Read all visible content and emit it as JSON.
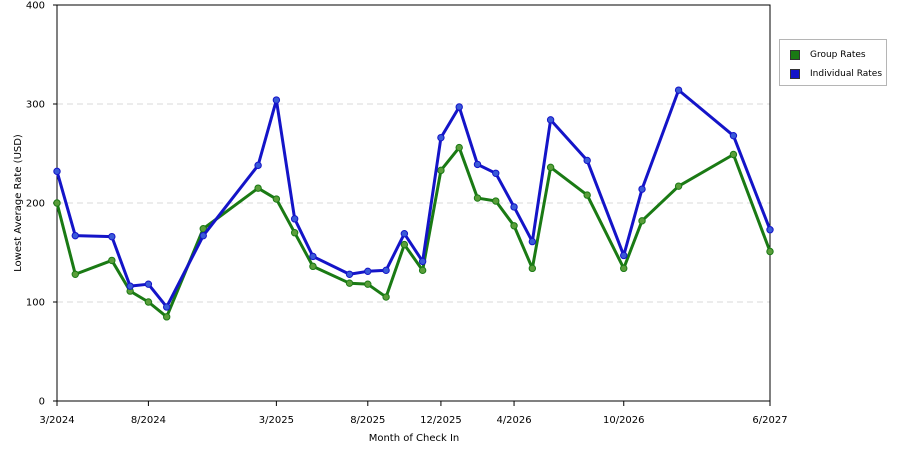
{
  "chart_data": {
    "type": "line",
    "xlabel": "Month of Check In",
    "ylabel": "Lowest Average Rate (USD)",
    "ylim": [
      0,
      400
    ],
    "yticks": [
      0,
      100,
      200,
      300,
      400
    ],
    "grid": "horizontal dashed",
    "legend_position": "right",
    "x": [
      "3/2024",
      "4/2024",
      "5/2024",
      "6/2024",
      "7/2024",
      "8/2024",
      "9/2024",
      "10/2024",
      "11/2024",
      "12/2024",
      "1/2025",
      "2/2025",
      "3/2025",
      "4/2025",
      "5/2025",
      "6/2025",
      "7/2025",
      "8/2025",
      "9/2025",
      "10/2025",
      "11/2025",
      "12/2025",
      "1/2026",
      "2/2026",
      "3/2026",
      "4/2026",
      "5/2026",
      "6/2026",
      "7/2026",
      "8/2026",
      "9/2026",
      "10/2026",
      "11/2026",
      "12/2026",
      "1/2027",
      "2/2027",
      "3/2027",
      "4/2027",
      "5/2027",
      "6/2027"
    ],
    "x_tick_labels": [
      "3/2024",
      "8/2024",
      "3/2025",
      "8/2025",
      "12/2025",
      "4/2026",
      "10/2026",
      "6/2027"
    ],
    "points": [
      {
        "x": "3/2024",
        "group": 200,
        "individual": 232
      },
      {
        "x": "4/2024",
        "group": 128,
        "individual": 167
      },
      {
        "x": "6/2024",
        "group": 142,
        "individual": 166
      },
      {
        "x": "7/2024",
        "group": 111,
        "individual": 116
      },
      {
        "x": "8/2024",
        "group": 100,
        "individual": 118
      },
      {
        "x": "9/2024",
        "group": 85,
        "individual": 95
      },
      {
        "x": "11/2024",
        "group": 174,
        "individual": 167
      },
      {
        "x": "2/2025",
        "group": 215,
        "individual": 238
      },
      {
        "x": "3/2025",
        "group": 204,
        "individual": 304
      },
      {
        "x": "4/2025",
        "group": 170,
        "individual": 184
      },
      {
        "x": "5/2025",
        "group": 136,
        "individual": 146
      },
      {
        "x": "7/2025",
        "group": 119,
        "individual": 128
      },
      {
        "x": "8/2025",
        "group": 118,
        "individual": 131
      },
      {
        "x": "9/2025",
        "group": 105,
        "individual": 132
      },
      {
        "x": "10/2025",
        "group": 158,
        "individual": 169
      },
      {
        "x": "11/2025",
        "group": 132,
        "individual": 141
      },
      {
        "x": "12/2025",
        "group": 233,
        "individual": 266
      },
      {
        "x": "1/2026",
        "group": 256,
        "individual": 297
      },
      {
        "x": "2/2026",
        "group": 205,
        "individual": 239
      },
      {
        "x": "3/2026",
        "group": 202,
        "individual": 230
      },
      {
        "x": "4/2026",
        "group": 177,
        "individual": 196
      },
      {
        "x": "5/2026",
        "group": 134,
        "individual": 161
      },
      {
        "x": "6/2026",
        "group": 236,
        "individual": 284
      },
      {
        "x": "8/2026",
        "group": 208,
        "individual": 243
      },
      {
        "x": "10/2026",
        "group": 134,
        "individual": 147
      },
      {
        "x": "11/2026",
        "group": 182,
        "individual": 214
      },
      {
        "x": "1/2027",
        "group": 217,
        "individual": 314
      },
      {
        "x": "4/2027",
        "group": 249,
        "individual": 268
      },
      {
        "x": "6/2027",
        "group": 151,
        "individual": 173
      }
    ],
    "series": [
      {
        "name": "Group Rates",
        "key": "group",
        "color": "#1a7a14",
        "marker": "#5a9e3a"
      },
      {
        "name": "Individual Rates",
        "key": "individual",
        "color": "#1414c8",
        "marker": "#3a5ad8"
      }
    ]
  }
}
